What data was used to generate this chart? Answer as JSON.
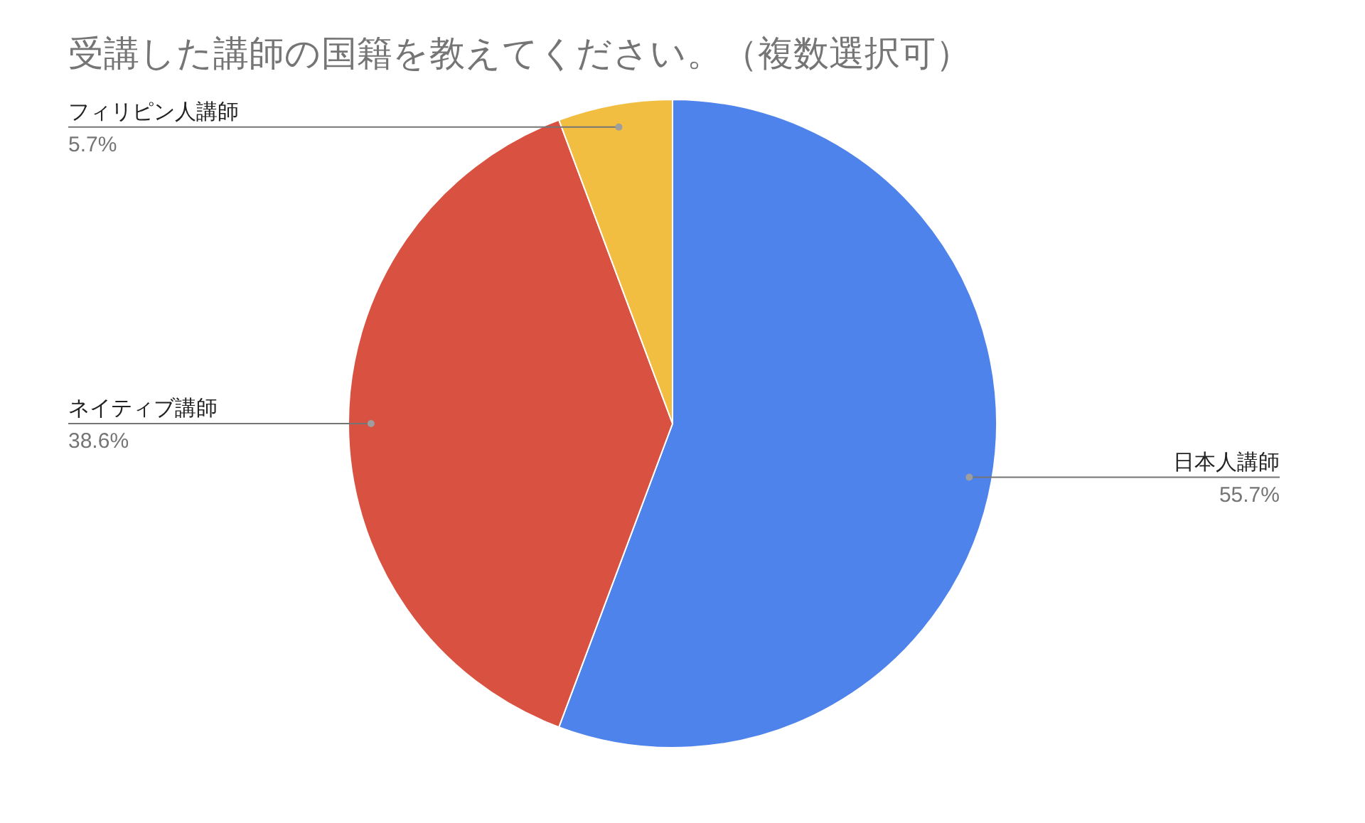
{
  "chart_data": {
    "type": "pie",
    "title": "受講した講師の国籍を教えてください。（複数選択可）",
    "categories": [
      "日本人講師",
      "ネイティブ講師",
      "フィリピン人講師"
    ],
    "values": [
      55.7,
      38.6,
      5.7
    ],
    "colors": [
      "#4f83ec",
      "#d95140",
      "#f2be42"
    ],
    "value_labels": [
      "55.7%",
      "38.6%",
      "5.7%"
    ]
  }
}
